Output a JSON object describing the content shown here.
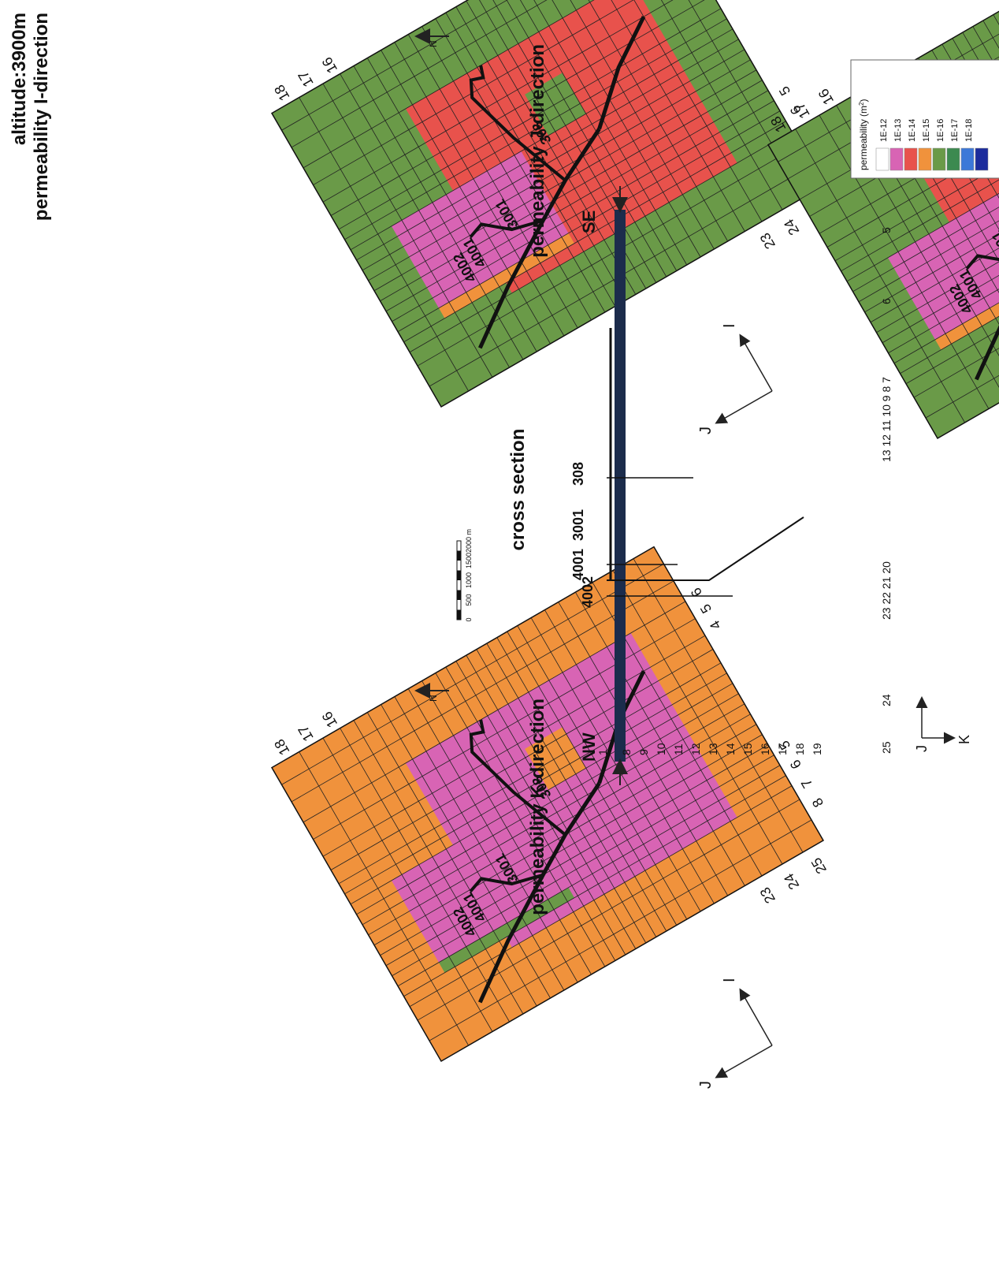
{
  "page_title": "altitude:3900m",
  "colors": {
    "c1e12": "#ffffff",
    "c1e13": "#d864b4",
    "c1e14": "#e8524c",
    "c1e15": "#f0923c",
    "c1e16": "#6a9a48",
    "c1e17": "#3c8a50",
    "c1e18": "#3c78d8",
    "c1e18b": "#1c2c9c"
  },
  "panels": {
    "i": {
      "title": "permeability I-direction",
      "zones": {
        "outer": "1E-16",
        "middle": "1E-14",
        "inner": "1E-13",
        "strip": "1E-15",
        "patch": "1E-16"
      }
    },
    "j": {
      "title": "permeability J-direction",
      "zones": {
        "outer": "1E-16",
        "middle": "1E-14",
        "inner": "1E-13",
        "strip": "1E-15",
        "patch": "1E-16"
      }
    },
    "k": {
      "title": "permeability K-direction",
      "zones": {
        "outer": "1E-15",
        "middle": "1E-13",
        "inner": "1E-13",
        "strip": "1E-16",
        "patch": "1E-15"
      }
    }
  },
  "map_labels": {
    "j_ticks": [
      "25",
      "24",
      "23"
    ],
    "i_ticks_left": [
      "8",
      "7",
      "6",
      "5"
    ],
    "i_ticks_right": [
      "4",
      "5",
      "6"
    ],
    "j_ticks_right": [
      "16",
      "17",
      "18"
    ],
    "wells": [
      "4002",
      "4001",
      "3001",
      "308"
    ],
    "axis_i": "I",
    "axis_j": "J",
    "north": "N"
  },
  "scale_bar": {
    "ticks": [
      "0",
      "500",
      "1000",
      "1500",
      "2000 m"
    ]
  },
  "cross_section": {
    "title": "cross section",
    "left_end": "NW",
    "right_end": "SE",
    "layer_labels": [
      "1",
      "8",
      "9",
      "10",
      "11",
      "12",
      "13",
      "14",
      "15",
      "16",
      "17",
      "18",
      "19"
    ],
    "column_labels": [
      "25",
      "24",
      "23 22 21 20",
      "13 12 11 10 9 8 7",
      "6",
      "5"
    ],
    "wells": [
      "4002",
      "4001",
      "3001",
      "308"
    ],
    "axis_j": "J",
    "axis_k": "K"
  },
  "legend": {
    "title": "permeability (m",
    "title_sup": "2",
    "title_end": ")",
    "entries": [
      {
        "label": "1E-12",
        "color": "#ffffff"
      },
      {
        "label": "1E-13",
        "color": "#d864b4"
      },
      {
        "label": "1E-14",
        "color": "#e8524c"
      },
      {
        "label": "1E-15",
        "color": "#f0923c"
      },
      {
        "label": "1E-16",
        "color": "#6a9a48"
      },
      {
        "label": "1E-17",
        "color": "#3c8a50"
      },
      {
        "label": "1E-18",
        "color": "#3c78d8"
      },
      {
        "label": "",
        "color": "#1c2c9c"
      }
    ]
  }
}
